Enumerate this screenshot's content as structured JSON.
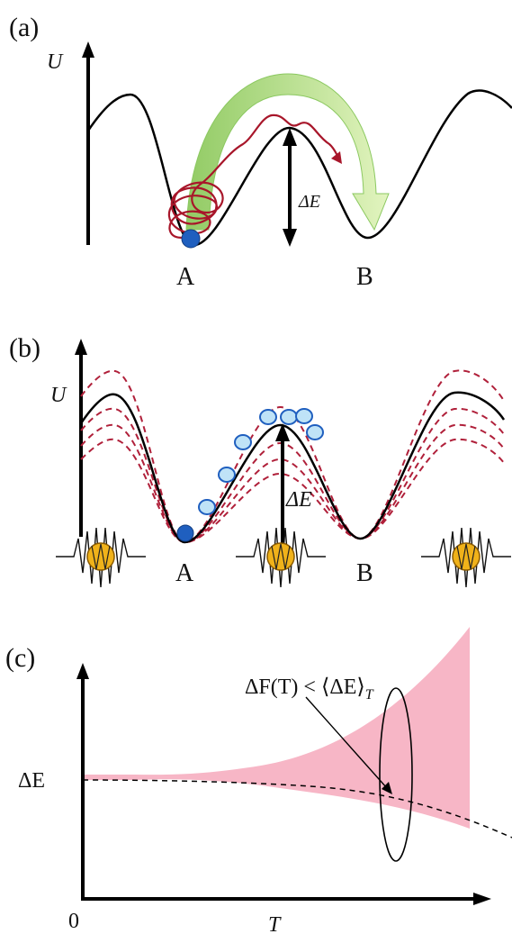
{
  "panel_a": {
    "label": "(a)",
    "y_axis": "U",
    "barrier": "ΔE",
    "state_a": "A",
    "state_b": "B"
  },
  "panel_b": {
    "label": "(b)",
    "y_axis": "U",
    "barrier": "ΔE",
    "state_a": "A",
    "state_b": "B"
  },
  "panel_c": {
    "label": "(c)",
    "y_tick": "ΔE",
    "x_origin": "0",
    "x_axis": "T",
    "inequality": "ΔF(T) < ⟨ΔE⟩",
    "inequality_sub": "T"
  },
  "colors": {
    "curve": "#000000",
    "trajectory": "#a8162a",
    "hop_arrow": "#9ed36a",
    "particle": "#1f5fbf",
    "particle_light": "#bfe3f7",
    "dashed_curves": "#b0203a",
    "phonon": "#f0b21a",
    "spread": "#f7b6c6"
  }
}
